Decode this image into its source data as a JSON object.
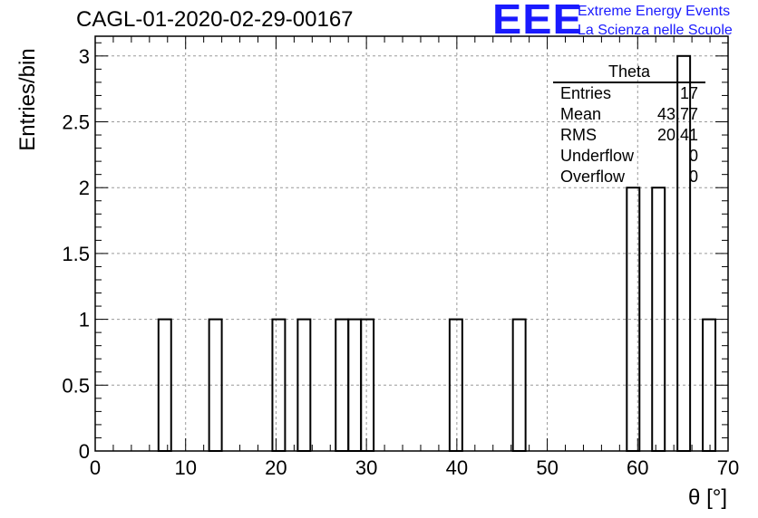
{
  "title": "CAGL-01-2020-02-29-00167",
  "logo": {
    "letters": "EEE",
    "line1": "Extreme Energy Events",
    "line2": "La Scienza nelle Scuole",
    "color": "#1a1aff"
  },
  "stats": {
    "title": "Theta",
    "rows": [
      {
        "key": "Entries",
        "value": "17"
      },
      {
        "key": "Mean",
        "value": "43.77"
      },
      {
        "key": "RMS",
        "value": "20.41"
      },
      {
        "key": "Underflow",
        "value": "0"
      },
      {
        "key": "Overflow",
        "value": "0"
      }
    ]
  },
  "chart_data": {
    "type": "bar",
    "title": "CAGL-01-2020-02-29-00167",
    "xlabel": "θ [°]",
    "ylabel": "Entries/bin",
    "xlim": [
      0,
      70
    ],
    "ylim": [
      0,
      3.15
    ],
    "grid": true,
    "xticks": [
      "0",
      "10",
      "20",
      "30",
      "40",
      "50",
      "60",
      "70"
    ],
    "yticks": [
      "0",
      "0.5",
      "1",
      "1.5",
      "2",
      "2.5",
      "3"
    ],
    "bin_width": 1.4,
    "bins": [
      {
        "x0": 7.0,
        "x1": 8.4,
        "value": 1
      },
      {
        "x0": 12.6,
        "x1": 14.0,
        "value": 1
      },
      {
        "x0": 19.6,
        "x1": 21.0,
        "value": 1
      },
      {
        "x0": 22.4,
        "x1": 23.8,
        "value": 1
      },
      {
        "x0": 26.6,
        "x1": 28.0,
        "value": 1
      },
      {
        "x0": 28.0,
        "x1": 29.4,
        "value": 1
      },
      {
        "x0": 29.4,
        "x1": 30.8,
        "value": 1
      },
      {
        "x0": 39.2,
        "x1": 40.6,
        "value": 1
      },
      {
        "x0": 46.2,
        "x1": 47.6,
        "value": 1
      },
      {
        "x0": 58.8,
        "x1": 60.2,
        "value": 2
      },
      {
        "x0": 61.6,
        "x1": 63.0,
        "value": 2
      },
      {
        "x0": 64.4,
        "x1": 65.8,
        "value": 3
      },
      {
        "x0": 67.2,
        "x1": 68.6,
        "value": 1
      }
    ]
  }
}
